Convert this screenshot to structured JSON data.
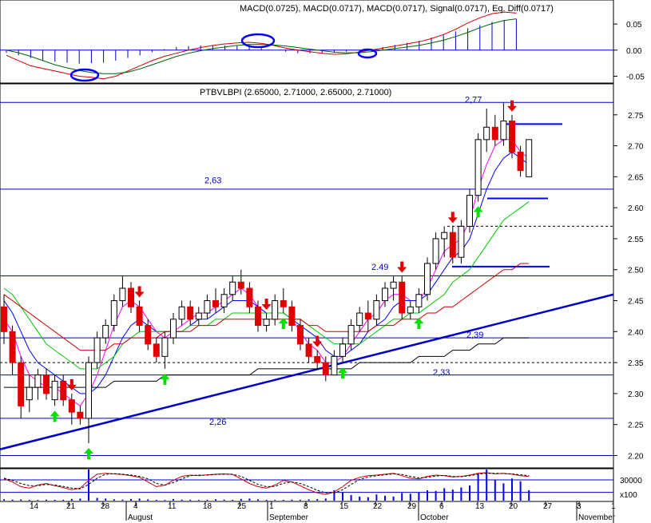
{
  "chart_data": [
    {
      "type": "line",
      "panel": "macd",
      "title": "MACD(0.0725), MACD(0.0717), MACD(0.0717), Signal(0.0717), Eq. Diff(0.0717)",
      "yticks": [
        "0.05",
        "0.00",
        "-0.05"
      ],
      "ylim": [
        -0.06,
        0.09
      ],
      "legend": "none",
      "series": [
        {
          "color": "#cc0000",
          "values": [
            -0.01,
            -0.02,
            -0.03,
            -0.035,
            -0.04,
            -0.045,
            -0.05,
            -0.052,
            -0.055,
            -0.05,
            -0.04,
            -0.03,
            -0.02,
            -0.012,
            -0.006,
            0.0,
            0.005,
            0.009,
            0.012,
            0.014,
            0.015,
            0.013,
            0.009,
            0.004,
            0.0,
            -0.003,
            -0.006,
            -0.008,
            -0.007,
            -0.004,
            0.0,
            0.004,
            0.008,
            0.012,
            0.016,
            0.022,
            0.03,
            0.04,
            0.052,
            0.062,
            0.07,
            0.073,
            0.071
          ]
        },
        {
          "color": "#006400",
          "values": [
            0.0,
            -0.005,
            -0.012,
            -0.02,
            -0.028,
            -0.034,
            -0.039,
            -0.043,
            -0.045,
            -0.045,
            -0.042,
            -0.036,
            -0.028,
            -0.02,
            -0.012,
            -0.006,
            -0.001,
            0.003,
            0.006,
            0.009,
            0.011,
            0.011,
            0.01,
            0.008,
            0.005,
            0.002,
            -0.001,
            -0.004,
            -0.005,
            -0.005,
            -0.003,
            0.0,
            0.003,
            0.006,
            0.009,
            0.014,
            0.019,
            0.026,
            0.034,
            0.043,
            0.051,
            0.057,
            0.06
          ]
        }
      ],
      "histogram": [
        -0.005,
        -0.01,
        -0.015,
        -0.02,
        -0.022,
        -0.024,
        -0.026,
        -0.025,
        -0.024,
        -0.02,
        -0.015,
        -0.01,
        -0.004,
        0.002,
        0.006,
        0.008,
        0.009,
        0.009,
        0.009,
        0.008,
        0.006,
        0.004,
        0.0,
        -0.003,
        -0.006,
        -0.006,
        -0.006,
        -0.005,
        -0.003,
        0.0,
        0.003,
        0.006,
        0.01,
        0.014,
        0.018,
        0.024,
        0.03,
        0.036,
        0.042,
        0.048,
        0.054,
        0.058,
        0.06
      ],
      "annotations": [
        "ellipse-bottom",
        "ellipse-top",
        "ellipse-cross"
      ]
    },
    {
      "type": "candlestick",
      "panel": "price",
      "title": "PTBVLBPI (2.65000, 2.71000, 2.65000, 2.71000)",
      "yticks": [
        "2.75",
        "2.70",
        "2.65",
        "2.60",
        "2.55",
        "2.50",
        "2.45",
        "2.40",
        "2.35",
        "2.30",
        "2.25",
        "2.20"
      ],
      "ylim": [
        2.18,
        2.8
      ],
      "xticks": [
        "14",
        "21",
        "28",
        "4",
        "11",
        "18",
        "25",
        "1",
        "8",
        "15",
        "22",
        "29",
        "6",
        "13",
        "20",
        "27",
        "3",
        "1"
      ],
      "months": [
        "August",
        "September",
        "October",
        "November"
      ],
      "legend": "none",
      "levels": [
        {
          "label": "2,77",
          "value": 2.77
        },
        {
          "label": "2,63",
          "value": 2.63
        },
        {
          "label": "2.49",
          "value": 2.49
        },
        {
          "label": "2,39",
          "value": 2.39
        },
        {
          "label": "2,33",
          "value": 2.33
        },
        {
          "label": "2,26",
          "value": 2.26
        }
      ],
      "candles": [
        [
          2.44,
          2.46,
          2.38,
          2.4
        ],
        [
          2.4,
          2.41,
          2.33,
          2.35
        ],
        [
          2.35,
          2.36,
          2.26,
          2.28
        ],
        [
          2.29,
          2.33,
          2.27,
          2.31
        ],
        [
          2.31,
          2.34,
          2.29,
          2.33
        ],
        [
          2.33,
          2.34,
          2.29,
          2.3
        ],
        [
          2.29,
          2.33,
          2.28,
          2.32
        ],
        [
          2.32,
          2.33,
          2.28,
          2.29
        ],
        [
          2.29,
          2.3,
          2.25,
          2.27
        ],
        [
          2.27,
          2.28,
          2.25,
          2.26
        ],
        [
          2.26,
          2.36,
          2.22,
          2.35
        ],
        [
          2.35,
          2.4,
          2.34,
          2.39
        ],
        [
          2.39,
          2.42,
          2.38,
          2.41
        ],
        [
          2.41,
          2.46,
          2.4,
          2.45
        ],
        [
          2.45,
          2.49,
          2.44,
          2.47
        ],
        [
          2.47,
          2.48,
          2.43,
          2.44
        ],
        [
          2.44,
          2.45,
          2.4,
          2.41
        ],
        [
          2.41,
          2.42,
          2.37,
          2.38
        ],
        [
          2.38,
          2.39,
          2.35,
          2.36
        ],
        [
          2.36,
          2.4,
          2.34,
          2.39
        ],
        [
          2.39,
          2.43,
          2.38,
          2.42
        ],
        [
          2.42,
          2.45,
          2.41,
          2.44
        ],
        [
          2.44,
          2.45,
          2.41,
          2.42
        ],
        [
          2.42,
          2.44,
          2.41,
          2.43
        ],
        [
          2.43,
          2.46,
          2.42,
          2.45
        ],
        [
          2.45,
          2.47,
          2.43,
          2.44
        ],
        [
          2.44,
          2.47,
          2.43,
          2.46
        ],
        [
          2.46,
          2.49,
          2.45,
          2.48
        ],
        [
          2.48,
          2.5,
          2.46,
          2.47
        ],
        [
          2.47,
          2.48,
          2.43,
          2.44
        ],
        [
          2.44,
          2.45,
          2.4,
          2.41
        ],
        [
          2.41,
          2.43,
          2.4,
          2.42
        ],
        [
          2.42,
          2.46,
          2.41,
          2.45
        ],
        [
          2.45,
          2.47,
          2.43,
          2.44
        ],
        [
          2.44,
          2.45,
          2.4,
          2.41
        ],
        [
          2.41,
          2.42,
          2.37,
          2.38
        ],
        [
          2.38,
          2.39,
          2.35,
          2.36
        ],
        [
          2.36,
          2.37,
          2.34,
          2.35
        ],
        [
          2.35,
          2.36,
          2.32,
          2.33
        ],
        [
          2.33,
          2.37,
          2.33,
          2.36
        ],
        [
          2.36,
          2.39,
          2.35,
          2.38
        ],
        [
          2.38,
          2.42,
          2.37,
          2.41
        ],
        [
          2.41,
          2.44,
          2.4,
          2.43
        ],
        [
          2.43,
          2.45,
          2.4,
          2.42
        ],
        [
          2.42,
          2.46,
          2.41,
          2.45
        ],
        [
          2.45,
          2.48,
          2.44,
          2.47
        ],
        [
          2.47,
          2.49,
          2.45,
          2.48
        ],
        [
          2.48,
          2.49,
          2.42,
          2.43
        ],
        [
          2.43,
          2.45,
          2.42,
          2.44
        ],
        [
          2.44,
          2.47,
          2.43,
          2.46
        ],
        [
          2.46,
          2.52,
          2.45,
          2.51
        ],
        [
          2.51,
          2.56,
          2.5,
          2.55
        ],
        [
          2.55,
          2.57,
          2.52,
          2.56
        ],
        [
          2.56,
          2.57,
          2.51,
          2.52
        ],
        [
          2.52,
          2.58,
          2.51,
          2.57
        ],
        [
          2.57,
          2.63,
          2.56,
          2.62
        ],
        [
          2.62,
          2.72,
          2.61,
          2.71
        ],
        [
          2.71,
          2.76,
          2.69,
          2.73
        ],
        [
          2.73,
          2.75,
          2.7,
          2.71
        ],
        [
          2.71,
          2.77,
          2.7,
          2.74
        ],
        [
          2.74,
          2.75,
          2.68,
          2.69
        ],
        [
          2.69,
          2.7,
          2.65,
          2.66
        ],
        [
          2.65,
          2.71,
          2.65,
          2.71
        ]
      ],
      "lines": [
        {
          "color": "#ff00ff",
          "values": [
            2.42,
            2.4,
            2.36,
            2.33,
            2.32,
            2.31,
            2.31,
            2.3,
            2.29,
            2.28,
            2.3,
            2.33,
            2.37,
            2.41,
            2.44,
            2.45,
            2.44,
            2.42,
            2.4,
            2.39,
            2.4,
            2.41,
            2.42,
            2.43,
            2.43,
            2.44,
            2.45,
            2.46,
            2.47,
            2.46,
            2.44,
            2.43,
            2.43,
            2.43,
            2.42,
            2.4,
            2.38,
            2.37,
            2.35,
            2.35,
            2.36,
            2.38,
            2.4,
            2.42,
            2.43,
            2.45,
            2.46,
            2.46,
            2.45,
            2.45,
            2.47,
            2.5,
            2.53,
            2.54,
            2.55,
            2.58,
            2.63,
            2.67,
            2.7,
            2.71,
            2.71,
            2.69,
            2.68
          ]
        },
        {
          "color": "#0000ff",
          "values": [
            2.45,
            2.43,
            2.4,
            2.37,
            2.35,
            2.34,
            2.33,
            2.32,
            2.31,
            2.3,
            2.3,
            2.31,
            2.33,
            2.36,
            2.39,
            2.41,
            2.42,
            2.41,
            2.4,
            2.4,
            2.4,
            2.4,
            2.41,
            2.42,
            2.42,
            2.43,
            2.44,
            2.45,
            2.45,
            2.45,
            2.44,
            2.43,
            2.43,
            2.43,
            2.42,
            2.41,
            2.4,
            2.39,
            2.37,
            2.36,
            2.36,
            2.37,
            2.38,
            2.4,
            2.41,
            2.42,
            2.44,
            2.45,
            2.45,
            2.45,
            2.46,
            2.48,
            2.5,
            2.52,
            2.53,
            2.55,
            2.59,
            2.63,
            2.66,
            2.68,
            2.69,
            2.68,
            2.67
          ]
        },
        {
          "color": "#00c800",
          "values": [
            2.47,
            2.46,
            2.44,
            2.42,
            2.4,
            2.38,
            2.37,
            2.36,
            2.35,
            2.34,
            2.34,
            2.34,
            2.35,
            2.36,
            2.38,
            2.39,
            2.4,
            2.4,
            2.4,
            2.4,
            2.4,
            2.4,
            2.41,
            2.41,
            2.41,
            2.42,
            2.42,
            2.43,
            2.43,
            2.43,
            2.43,
            2.43,
            2.43,
            2.43,
            2.42,
            2.42,
            2.41,
            2.4,
            2.39,
            2.38,
            2.38,
            2.38,
            2.38,
            2.39,
            2.4,
            2.41,
            2.42,
            2.42,
            2.43,
            2.43,
            2.44,
            2.45,
            2.46,
            2.48,
            2.49,
            2.5,
            2.52,
            2.54,
            2.56,
            2.58,
            2.59,
            2.6,
            2.61
          ]
        },
        {
          "color": "#cc0000",
          "values": [
            2.46,
            2.45,
            2.44,
            2.43,
            2.42,
            2.41,
            2.4,
            2.39,
            2.38,
            2.37,
            2.37,
            2.37,
            2.37,
            2.38,
            2.38,
            2.39,
            2.39,
            2.39,
            2.39,
            2.4,
            2.4,
            2.4,
            2.4,
            2.41,
            2.41,
            2.41,
            2.42,
            2.42,
            2.42,
            2.42,
            2.42,
            2.42,
            2.42,
            2.42,
            2.42,
            2.42,
            2.41,
            2.41,
            2.4,
            2.4,
            2.4,
            2.4,
            2.4,
            2.4,
            2.41,
            2.41,
            2.41,
            2.42,
            2.42,
            2.42,
            2.43,
            2.43,
            2.44,
            2.44,
            2.45,
            2.46,
            2.47,
            2.48,
            2.49,
            2.5,
            2.5,
            2.51,
            2.51
          ]
        },
        {
          "color": "#000000",
          "values": [
            2.31,
            2.31,
            2.31,
            2.31,
            2.31,
            2.31,
            2.31,
            2.31,
            2.31,
            2.31,
            2.31,
            2.31,
            2.31,
            2.32,
            2.32,
            2.32,
            2.32,
            2.32,
            2.32,
            2.33,
            2.33,
            2.33,
            2.33,
            2.33,
            2.33,
            2.33,
            2.33,
            2.33,
            2.33,
            2.33,
            2.34,
            2.34,
            2.34,
            2.34,
            2.34,
            2.34,
            2.34,
            2.34,
            2.34,
            2.34,
            2.34,
            2.34,
            2.35,
            2.35,
            2.35,
            2.35,
            2.35,
            2.35,
            2.35,
            2.36,
            2.36,
            2.36,
            2.36,
            2.37,
            2.37,
            2.37,
            2.38,
            2.38,
            2.38,
            2.39,
            2.39,
            2.39,
            2.39
          ]
        }
      ],
      "down_arrows": [
        8,
        16,
        31,
        37,
        47,
        53,
        60
      ],
      "up_arrows": [
        6,
        10,
        19,
        33,
        40,
        49,
        56
      ]
    },
    {
      "type": "bar",
      "panel": "volume",
      "yticks": [
        "30000"
      ],
      "ylabel": "x100",
      "ylim": [
        0,
        45000
      ],
      "legend": "none",
      "values": [
        2000,
        1500,
        1800,
        1200,
        1000,
        1500,
        1200,
        1300,
        2500,
        3000,
        45000,
        4000,
        3000,
        2000,
        1500,
        2500,
        3000,
        1800,
        1200,
        1000,
        2200,
        1500,
        1300,
        1100,
        1200,
        2000,
        1500,
        1200,
        2500,
        3000,
        1800,
        1200,
        1000,
        1200,
        1500,
        1300,
        1800,
        2200,
        3000,
        15000,
        12000,
        8000,
        6000,
        5000,
        9000,
        7000,
        6000,
        11000,
        10000,
        12000,
        15000,
        14000,
        18000,
        16000,
        19000,
        22000,
        40000,
        45000,
        30000,
        25000,
        32000,
        28000,
        15000
      ],
      "stoch_k": [
        70,
        60,
        45,
        40,
        50,
        55,
        48,
        42,
        35,
        40,
        65,
        85,
        88,
        86,
        84,
        80,
        75,
        60,
        45,
        50,
        65,
        78,
        82,
        80,
        83,
        85,
        86,
        84,
        70,
        55,
        45,
        40,
        50,
        65,
        60,
        48,
        35,
        25,
        20,
        28,
        45,
        65,
        75,
        80,
        82,
        85,
        88,
        80,
        72,
        70,
        78,
        82,
        80,
        76,
        78,
        82,
        88,
        90,
        86,
        88,
        85,
        80,
        78
      ],
      "stoch_d": [
        72,
        65,
        55,
        48,
        48,
        52,
        50,
        46,
        40,
        38,
        52,
        72,
        85,
        87,
        85,
        82,
        78,
        70,
        55,
        50,
        58,
        70,
        80,
        82,
        82,
        84,
        85,
        85,
        78,
        65,
        52,
        45,
        46,
        56,
        60,
        55,
        45,
        33,
        25,
        25,
        35,
        52,
        68,
        76,
        80,
        83,
        86,
        84,
        78,
        73,
        75,
        79,
        81,
        78,
        77,
        80,
        85,
        88,
        88,
        87,
        86,
        83,
        80
      ]
    }
  ]
}
